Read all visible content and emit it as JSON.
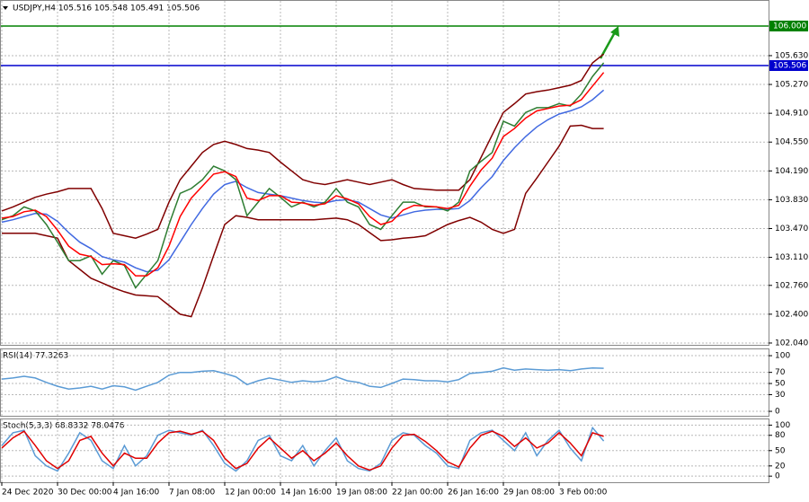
{
  "chart_data": [
    {
      "type": "line",
      "title": "USDJPY,H4  105.516 105.548 105.491 105.506",
      "categories": [
        "24 Dec 2020",
        null,
        null,
        null,
        null,
        "30 Dec 00:00",
        null,
        null,
        null,
        null,
        "4 Jan 16:00",
        null,
        null,
        null,
        null,
        "7 Jan 08:00",
        null,
        null,
        null,
        null,
        "12 Jan 00:00",
        null,
        null,
        null,
        null,
        "14 Jan 16:00",
        null,
        null,
        null,
        null,
        "19 Jan 08:00",
        null,
        null,
        null,
        null,
        "22 Jan 00:00",
        null,
        null,
        null,
        null,
        "26 Jan 16:00",
        null,
        null,
        null,
        null,
        "29 Jan 08:00",
        null,
        null,
        null,
        null,
        "3 Feb 00:00",
        null,
        null,
        null,
        null
      ],
      "series": [
        {
          "color": "#800000",
          "values": [
            103.69,
            103.74,
            103.8,
            103.86,
            103.9,
            103.93,
            103.97,
            103.97,
            103.97,
            103.72,
            103.41,
            103.38,
            103.35,
            103.4,
            103.46,
            103.8,
            104.08,
            104.25,
            104.42,
            104.52,
            104.56,
            104.52,
            104.47,
            104.45,
            104.42,
            104.3,
            104.19,
            104.08,
            104.04,
            104.02,
            104.05,
            104.08,
            104.05,
            104.02,
            104.05,
            104.08,
            104.02,
            103.97,
            103.96,
            103.95,
            103.95,
            103.95,
            104.08,
            104.36,
            104.64,
            104.92,
            105.03,
            105.15,
            105.18,
            105.2,
            105.23,
            105.26,
            105.32,
            105.54,
            105.65
          ]
        },
        {
          "color": "#800000",
          "values": [
            103.41,
            103.41,
            103.41,
            103.41,
            103.38,
            103.35,
            103.07,
            102.96,
            102.85,
            102.79,
            102.73,
            102.68,
            102.64,
            102.63,
            102.62,
            102.51,
            102.4,
            102.37,
            102.73,
            103.13,
            103.52,
            103.63,
            103.61,
            103.58,
            103.58,
            103.58,
            103.58,
            103.58,
            103.58,
            103.59,
            103.6,
            103.58,
            103.52,
            103.42,
            103.32,
            103.33,
            103.35,
            103.36,
            103.38,
            103.45,
            103.52,
            103.57,
            103.61,
            103.55,
            103.46,
            103.41,
            103.46,
            103.91,
            104.1,
            104.3,
            104.5,
            104.75,
            104.76,
            104.72,
            104.72
          ]
        },
        {
          "color": "#4169e1",
          "values": [
            103.55,
            103.58,
            103.62,
            103.66,
            103.65,
            103.56,
            103.42,
            103.3,
            103.22,
            103.12,
            103.08,
            103.05,
            102.98,
            102.93,
            102.95,
            103.08,
            103.3,
            103.52,
            103.72,
            103.9,
            104.02,
            104.06,
            103.98,
            103.92,
            103.9,
            103.88,
            103.85,
            103.82,
            103.8,
            103.79,
            103.82,
            103.83,
            103.8,
            103.72,
            103.64,
            103.6,
            103.64,
            103.68,
            103.7,
            103.71,
            103.71,
            103.72,
            103.82,
            103.98,
            104.12,
            104.32,
            104.48,
            104.62,
            104.74,
            104.83,
            104.9,
            104.94,
            104.99,
            105.08,
            105.2
          ]
        },
        {
          "color": "#2e7d32",
          "values": [
            103.58,
            103.63,
            103.74,
            103.69,
            103.52,
            103.3,
            103.07,
            103.07,
            103.13,
            102.9,
            103.07,
            103.01,
            102.73,
            102.9,
            103.07,
            103.52,
            103.91,
            103.97,
            104.08,
            104.25,
            104.19,
            104.08,
            103.63,
            103.8,
            103.97,
            103.86,
            103.74,
            103.8,
            103.74,
            103.8,
            103.97,
            103.8,
            103.74,
            103.52,
            103.46,
            103.63,
            103.8,
            103.8,
            103.74,
            103.74,
            103.69,
            103.8,
            104.19,
            104.31,
            104.42,
            104.81,
            104.75,
            104.92,
            104.98,
            104.98,
            105.03,
            105.0,
            105.15,
            105.37,
            105.54
          ]
        },
        {
          "color": "#ff0000",
          "values": [
            103.6,
            103.62,
            103.68,
            103.7,
            103.62,
            103.45,
            103.25,
            103.15,
            103.12,
            103.02,
            103.03,
            103.02,
            102.88,
            102.88,
            102.98,
            103.25,
            103.62,
            103.85,
            104.0,
            104.15,
            104.18,
            104.12,
            103.85,
            103.82,
            103.88,
            103.88,
            103.8,
            103.79,
            103.76,
            103.78,
            103.88,
            103.84,
            103.78,
            103.62,
            103.52,
            103.56,
            103.7,
            103.76,
            103.75,
            103.74,
            103.72,
            103.76,
            104.0,
            104.2,
            104.35,
            104.62,
            104.72,
            104.85,
            104.94,
            104.97,
            105.0,
            105.01,
            105.08,
            105.25,
            105.42
          ]
        }
      ],
      "ylim": [
        102.006,
        106.325
      ],
      "yticks": [
        {
          "value": 105.63,
          "label": "105.630"
        },
        {
          "value": 105.27,
          "label": "105.270"
        },
        {
          "value": 104.91,
          "label": "104.910"
        },
        {
          "value": 104.55,
          "label": "104.550"
        },
        {
          "value": 104.19,
          "label": "104.190"
        },
        {
          "value": 103.83,
          "label": "103.830"
        },
        {
          "value": 103.47,
          "label": "103.470"
        },
        {
          "value": 103.11,
          "label": "103.110"
        },
        {
          "value": 102.76,
          "label": "102.760"
        },
        {
          "value": 102.4,
          "label": "102.400"
        },
        {
          "value": 102.04,
          "label": "102.040"
        }
      ],
      "hlines": [
        {
          "value": 106,
          "label": "106.000",
          "color": "#008000"
        },
        {
          "value": 105.506,
          "label": "105.506",
          "color": "#0000cd"
        }
      ],
      "grid": true
    },
    {
      "type": "line",
      "title": "RSI(14) 77.3263",
      "color": "#5b9bd5",
      "values": [
        58,
        60,
        63,
        60,
        52,
        45,
        40,
        42,
        45,
        40,
        46,
        44,
        38,
        45,
        52,
        65,
        70,
        70,
        72,
        73,
        68,
        62,
        48,
        55,
        60,
        56,
        52,
        55,
        53,
        55,
        62,
        55,
        52,
        45,
        43,
        50,
        58,
        57,
        55,
        55,
        53,
        57,
        68,
        70,
        72,
        78,
        74,
        76,
        75,
        74,
        75,
        73,
        76,
        78,
        77.3263
      ],
      "ylim": [
        -8,
        113
      ],
      "yticks": [
        100,
        70,
        50,
        30,
        0
      ],
      "grid": true
    },
    {
      "type": "line",
      "title": "Stoch(5,3,3) 68.8332 78.0476",
      "series": [
        {
          "color": "#5b9bd5",
          "values": [
            60,
            85,
            90,
            40,
            20,
            10,
            45,
            85,
            70,
            30,
            15,
            60,
            20,
            40,
            80,
            90,
            85,
            80,
            90,
            60,
            25,
            10,
            30,
            70,
            80,
            40,
            30,
            60,
            20,
            50,
            75,
            30,
            15,
            10,
            25,
            70,
            85,
            80,
            60,
            45,
            20,
            15,
            70,
            85,
            90,
            70,
            50,
            85,
            40,
            70,
            90,
            55,
            30,
            95,
            68.8332
          ]
        },
        {
          "color": "#e00000",
          "values": [
            55,
            75,
            88,
            60,
            30,
            15,
            30,
            70,
            78,
            45,
            20,
            45,
            35,
            35,
            65,
            85,
            88,
            82,
            88,
            70,
            35,
            15,
            25,
            55,
            75,
            55,
            35,
            50,
            30,
            45,
            65,
            40,
            20,
            12,
            20,
            55,
            80,
            82,
            68,
            50,
            28,
            18,
            55,
            80,
            88,
            78,
            58,
            75,
            55,
            65,
            85,
            65,
            40,
            85,
            78.0476
          ]
        }
      ],
      "ylim": [
        -12,
        113
      ],
      "yticks": [
        100,
        80,
        50,
        20,
        0
      ],
      "grid": true
    }
  ]
}
